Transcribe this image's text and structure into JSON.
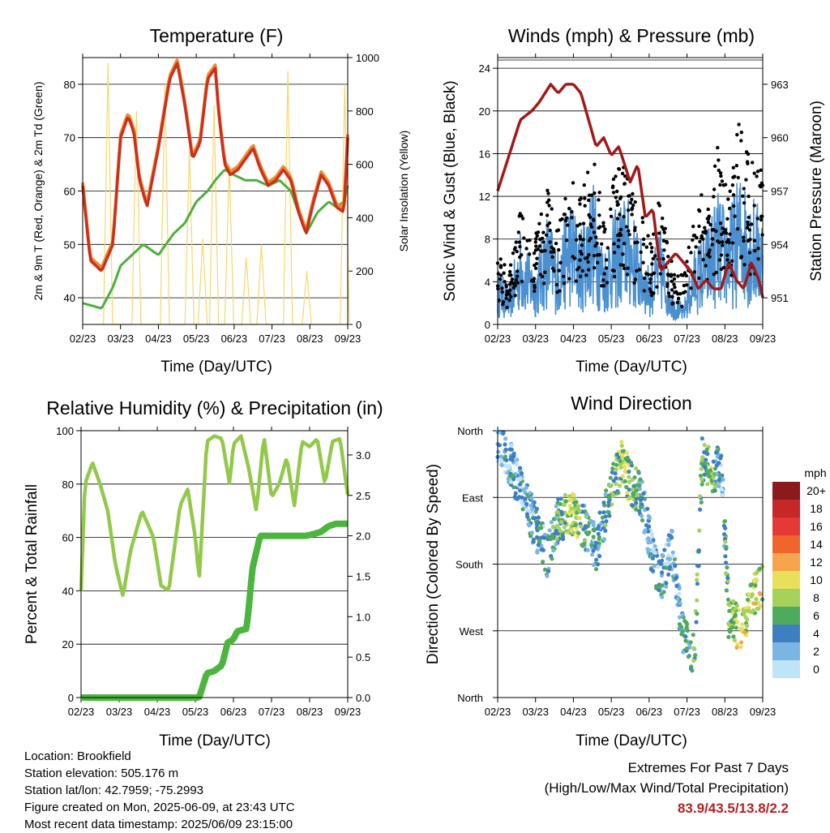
{
  "time_ticks": [
    "02/23",
    "03/23",
    "04/23",
    "05/23",
    "06/23",
    "07/23",
    "08/23",
    "09/23"
  ],
  "colors": {
    "temp_2m": "#cc2f1c",
    "temp_9m": "#f08a2c",
    "dewpoint": "#4caf3c",
    "solar": "#f5d76e",
    "wind": "#4a90d0",
    "gust": "#000000",
    "pressure": "#a31919",
    "rh": "#93c94a",
    "precip": "#4cb53d",
    "extremes": "#b22222"
  },
  "chart_data": [
    {
      "type": "line",
      "title": "Temperature (F)",
      "xlabel": "Time (Day/UTC)",
      "ylabel": "2m & 9m T (Red, Orange) & 2m Td (Green)",
      "y2label": "Solar Insolation (Yellow)",
      "x": [
        "02/23",
        "03/23",
        "04/23",
        "05/23",
        "06/23",
        "07/23",
        "08/23",
        "09/23"
      ],
      "ylim": [
        35,
        85
      ],
      "y2lim": [
        0,
        1000
      ],
      "yticks": [
        40,
        50,
        60,
        70,
        80
      ],
      "y2ticks": [
        0,
        200,
        400,
        600,
        800,
        1000
      ],
      "grid": true,
      "series": [
        {
          "x": [
            0,
            0.2,
            0.5,
            0.8,
            1.0,
            1.2,
            1.35,
            1.5,
            1.7,
            2.0,
            2.3,
            2.5,
            2.7,
            2.9,
            3.1,
            3.3,
            3.5,
            3.6,
            3.75,
            3.9,
            4.1,
            4.3,
            4.5,
            4.7,
            4.9,
            5.1,
            5.3,
            5.5,
            5.7,
            5.9,
            6.1,
            6.3,
            6.5,
            6.7,
            6.9,
            7.0
          ],
          "values": [
            61,
            47,
            45,
            50,
            70,
            74,
            71,
            62,
            57,
            68,
            81,
            84,
            76,
            66,
            69,
            81,
            83,
            74,
            65,
            63,
            64,
            66,
            68,
            64,
            61,
            62,
            64,
            62,
            56,
            52,
            58,
            63,
            61,
            57,
            56,
            70
          ]
        },
        {
          "x": [
            0,
            0.5,
            0.8,
            1.0,
            1.3,
            1.6,
            2.0,
            2.4,
            2.7,
            3.0,
            3.3,
            3.5,
            3.75,
            4.0,
            4.3,
            4.6,
            4.9,
            5.2,
            5.5,
            5.9,
            6.2,
            6.5,
            6.7,
            6.9,
            7.0
          ],
          "values": [
            39,
            38,
            42,
            46,
            48,
            50,
            48,
            52,
            54,
            58,
            60,
            62,
            64,
            63,
            62,
            62,
            61,
            62,
            60,
            52,
            56,
            58,
            57,
            58,
            61
          ]
        },
        {
          "x": [
            0.55,
            0.67,
            0.79,
            1.3,
            1.42,
            1.54,
            2.05,
            2.17,
            2.29,
            2.7,
            2.82,
            2.94,
            3.05,
            3.17,
            3.29,
            3.35,
            3.47,
            3.59,
            3.75,
            3.87,
            3.99,
            4.2,
            4.32,
            4.44,
            4.6,
            4.72,
            4.84,
            5.3,
            5.42,
            5.54,
            5.8,
            5.92,
            6.04,
            6.8,
            6.92,
            7.04
          ],
          "values": [
            0,
            980,
            0,
            0,
            800,
            0,
            0,
            900,
            0,
            0,
            650,
            0,
            0,
            320,
            0,
            0,
            820,
            0,
            0,
            600,
            0,
            0,
            250,
            0,
            0,
            300,
            0,
            0,
            950,
            0,
            0,
            200,
            0,
            0,
            900,
            0
          ]
        }
      ]
    },
    {
      "type": "line",
      "title": "Winds (mph) & Pressure (mb)",
      "xlabel": "Time (Day/UTC)",
      "ylabel": "Sonic Wind & Gust (Blue, Black)",
      "y2label": "Station Pressure (Maroon)",
      "x": [
        "02/23",
        "03/23",
        "04/23",
        "05/23",
        "06/23",
        "07/23",
        "08/23",
        "09/23"
      ],
      "ylim": [
        0,
        25
      ],
      "y2lim": [
        949.5,
        964.5
      ],
      "yticks": [
        0,
        4,
        8,
        12,
        16,
        20,
        24
      ],
      "y2ticks": [
        951,
        954,
        957,
        960,
        963
      ],
      "grid": true,
      "series": [
        {
          "x": [
            0,
            0.3,
            0.6,
            1.0,
            1.3,
            1.6,
            1.9,
            2.2,
            2.5,
            2.8,
            3.1,
            3.4,
            3.7,
            4.0,
            4.3,
            4.6,
            4.9,
            5.2,
            5.5,
            5.8,
            6.1,
            6.4,
            6.7,
            7.0
          ],
          "values": [
            3,
            2,
            5,
            3,
            6,
            4,
            7,
            5,
            8,
            4,
            6,
            7,
            5,
            3,
            5,
            2,
            1,
            4,
            5,
            7,
            6,
            8,
            7,
            6
          ]
        },
        {
          "x": [
            0,
            0.3,
            0.6,
            1.0,
            1.3,
            1.6,
            1.9,
            2.2,
            2.5,
            2.8,
            3.1,
            3.4,
            3.7,
            4.0,
            4.3,
            4.6,
            4.9,
            5.2,
            5.5,
            5.8,
            6.1,
            6.4,
            6.7,
            7.0
          ],
          "values": [
            6,
            4,
            9,
            7,
            11,
            8,
            12,
            10,
            14,
            9,
            12,
            13,
            10,
            7,
            10,
            5,
            4,
            9,
            11,
            14,
            12,
            16,
            13,
            12
          ]
        },
        {
          "x": [
            0,
            0.3,
            0.6,
            0.9,
            1.1,
            1.4,
            1.6,
            1.8,
            2.0,
            2.2,
            2.4,
            2.6,
            2.8,
            3.0,
            3.2,
            3.5,
            3.7,
            3.9,
            4.1,
            4.3,
            4.5,
            4.7,
            4.9,
            5.1,
            5.3,
            5.5,
            5.7,
            5.9,
            6.1,
            6.3,
            6.5,
            6.7,
            6.9,
            7.0
          ],
          "values": [
            957,
            959,
            961,
            961.5,
            962,
            963,
            962.5,
            963,
            963,
            962.5,
            961,
            959.5,
            960,
            959,
            959.5,
            957.5,
            958.5,
            955.5,
            956,
            952.5,
            953,
            953.5,
            953,
            952.5,
            951.5,
            952,
            951.5,
            951.5,
            953,
            952,
            951.5,
            953,
            952,
            951
          ]
        }
      ]
    },
    {
      "type": "line",
      "title": "Relative Humidity (%) & Precipitation (in)",
      "xlabel": "Time (Day/UTC)",
      "ylabel": "Percent & Total Rainfall",
      "x": [
        "02/23",
        "03/23",
        "04/23",
        "05/23",
        "06/23",
        "07/23",
        "08/23",
        "09/23"
      ],
      "ylim": [
        0,
        100
      ],
      "y2lim": [
        0,
        3.3
      ],
      "yticks": [
        0,
        20,
        40,
        60,
        80,
        100
      ],
      "y2ticks": [
        0.0,
        0.5,
        1.0,
        1.5,
        2.0,
        2.5,
        3.0
      ],
      "grid": true,
      "series": [
        {
          "x": [
            0,
            0.1,
            0.3,
            0.5,
            0.7,
            0.9,
            1.1,
            1.3,
            1.6,
            1.9,
            2.1,
            2.3,
            2.6,
            2.8,
            3.0,
            3.1,
            3.3,
            3.5,
            3.7,
            3.9,
            4.0,
            4.2,
            4.4,
            4.6,
            4.8,
            5.0,
            5.2,
            5.4,
            5.6,
            5.8,
            6.0,
            6.2,
            6.4,
            6.6,
            6.8,
            7.0
          ],
          "values": [
            40,
            80,
            88,
            80,
            70,
            50,
            38,
            55,
            70,
            60,
            42,
            40,
            72,
            78,
            60,
            44,
            96,
            98,
            97,
            80,
            95,
            98,
            86,
            70,
            98,
            75,
            80,
            90,
            72,
            96,
            94,
            97,
            80,
            96,
            97,
            76
          ]
        },
        {
          "x": [
            0,
            3.1,
            3.3,
            3.45,
            3.5,
            3.7,
            3.85,
            4.0,
            4.1,
            4.35,
            4.5,
            4.7,
            4.9,
            5.1,
            5.3,
            5.5,
            5.7,
            5.9,
            6.1,
            6.3,
            6.5,
            6.7,
            7.0
          ],
          "values": [
            0,
            0,
            0.3,
            0.32,
            0.33,
            0.4,
            0.68,
            0.72,
            0.82,
            0.85,
            1.6,
            2.0,
            2.0,
            2.0,
            2.0,
            2.0,
            2.0,
            2.0,
            2.02,
            2.05,
            2.12,
            2.15,
            2.15
          ]
        }
      ]
    },
    {
      "type": "scatter",
      "title": "Wind Direction",
      "xlabel": "Time (Day/UTC)",
      "ylabel": "Direction (Colored By Speed)",
      "x": [
        "02/23",
        "03/23",
        "04/23",
        "05/23",
        "06/23",
        "07/23",
        "08/23",
        "09/23"
      ],
      "yticks": [
        "North",
        "West",
        "South",
        "East",
        "North"
      ],
      "ylim": [
        0,
        360
      ],
      "grid": true,
      "legend_title": "mph",
      "legend_position": "right",
      "legend": [
        "20+",
        "18",
        "16",
        "14",
        "12",
        "10",
        "8",
        "6",
        "4",
        "2",
        "0"
      ],
      "legend_colors": [
        "#8b1a1a",
        "#c62828",
        "#e53935",
        "#f0652b",
        "#f6a54c",
        "#e8e05a",
        "#a6d15a",
        "#4eab5c",
        "#3e7fc2",
        "#79b6e3",
        "#bfe3f7"
      ],
      "series": [
        {
          "x": [
            0.1,
            0.3,
            0.6,
            1.0,
            1.3,
            1.6,
            2.0,
            2.3,
            2.6,
            3.0,
            3.3,
            3.5,
            3.8,
            4.1,
            4.3,
            4.6,
            4.9,
            5.2,
            5.4,
            5.7,
            5.9,
            6.1,
            6.4,
            6.7,
            6.9
          ],
          "values": [
            340,
            320,
            280,
            230,
            190,
            240,
            250,
            230,
            200,
            280,
            320,
            290,
            270,
            190,
            160,
            200,
            80,
            60,
            320,
            300,
            320,
            110,
            90,
            130,
            150
          ],
          "speed": [
            2,
            3,
            2,
            4,
            3,
            6,
            8,
            5,
            3,
            6,
            8,
            7,
            4,
            2,
            3,
            2,
            4,
            5,
            6,
            7,
            3,
            7,
            9,
            8,
            9
          ]
        }
      ]
    }
  ],
  "footer": {
    "location": "Location: Brookfield",
    "elevation": "Station elevation: 505.176 m",
    "latlon": "Station lat/lon: 42.7959; -75.2993",
    "created": "Figure created on Mon, 2025-06-09, at 23:43 UTC",
    "recent": "Most recent data timestamp: 2025/06/09 23:15:00"
  },
  "extremes": {
    "title": "Extremes For Past 7 Days",
    "subtitle": "(High/Low/Max Wind/Total Precipitation)",
    "values": "83.9/43.5/13.8/2.2"
  }
}
